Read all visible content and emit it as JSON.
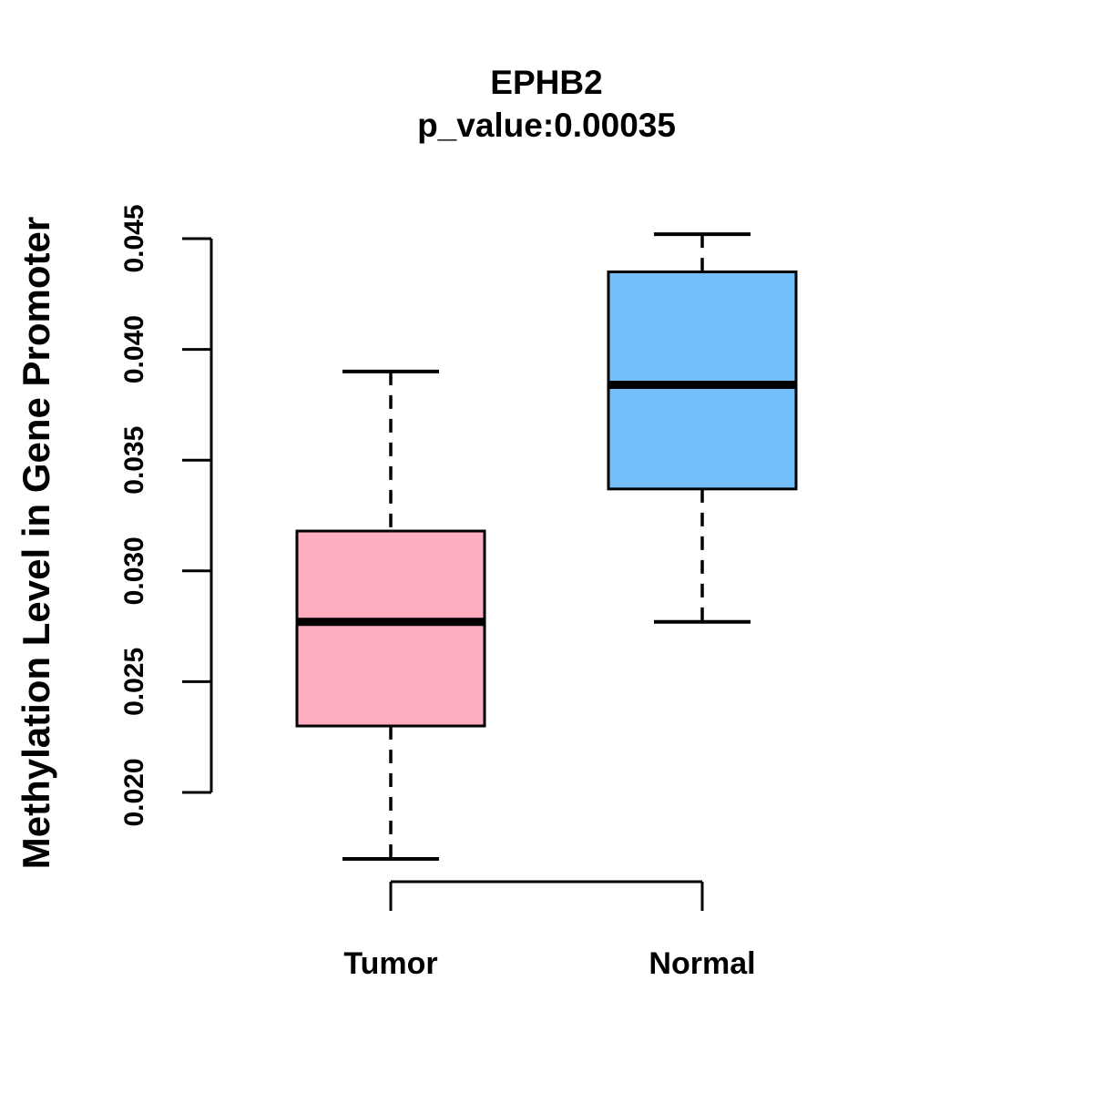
{
  "title": {
    "line1": "EPHB2",
    "line2": "p_value:0.00035"
  },
  "y_axis": {
    "label": "Methylation Level in Gene Promoter",
    "ticks": [
      "0.020",
      "0.025",
      "0.030",
      "0.035",
      "0.040",
      "0.045"
    ]
  },
  "x_axis": {
    "categories": [
      "Tumor",
      "Normal"
    ]
  },
  "colors": {
    "tumor_box": "#FFAEC0",
    "normal_box": "#74BFFA",
    "line": "#000000",
    "background": "#FFFFFF"
  },
  "chart_data": {
    "type": "boxplot",
    "title": "EPHB2",
    "subtitle": "p_value:0.00035",
    "ylabel": "Methylation Level in Gene Promoter",
    "xlabel": "",
    "categories": [
      "Tumor",
      "Normal"
    ],
    "ylim": [
      0.02,
      0.045
    ],
    "yticks": [
      0.02,
      0.025,
      0.03,
      0.035,
      0.04,
      0.045
    ],
    "grid": false,
    "legend": "none",
    "series": [
      {
        "name": "Tumor",
        "whisker_low": 0.017,
        "q1": 0.023,
        "median": 0.0277,
        "q3": 0.0318,
        "whisker_high": 0.039,
        "color": "#FFAEC0"
      },
      {
        "name": "Normal",
        "whisker_low": 0.0277,
        "q1": 0.0337,
        "median": 0.0384,
        "q3": 0.0435,
        "whisker_high": 0.0452,
        "color": "#74BFFA"
      }
    ]
  }
}
